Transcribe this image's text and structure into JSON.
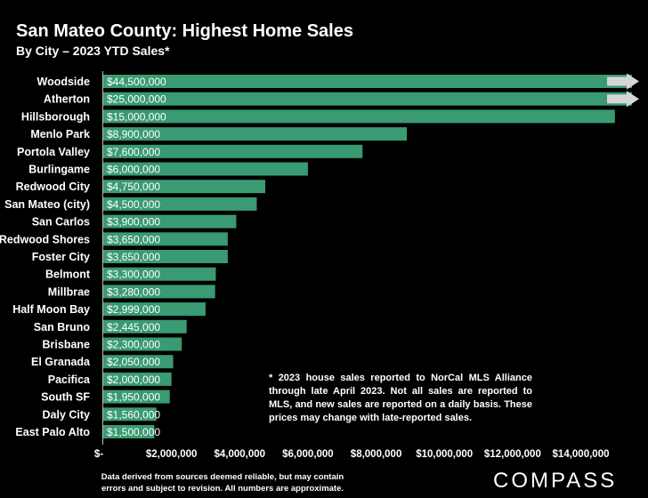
{
  "header": {
    "title": "San Mateo County: Highest Home Sales",
    "subtitle": "By City – 2023 YTD Sales*"
  },
  "footnote": "* 2023 house sales reported to NorCal MLS Alliance through late April 2023. Not all sales are reported to MLS, and new sales are reported on a daily basis. These prices may change with late-reported sales.",
  "source_line_1": "Data derived from sources deemed reliable, but may contain",
  "source_line_2": "errors and subject to revision. All numbers are approximate.",
  "logo": "COMPASS",
  "colors": {
    "bar": "#3a9a72",
    "arrow": "#d6d6d6",
    "background": "#000000",
    "text": "#ffffff"
  },
  "chart_data": {
    "type": "bar",
    "orientation": "horizontal",
    "categories": [
      "Woodside",
      "Atherton",
      "Hillsborough",
      "Menlo Park",
      "Portola Valley",
      "Burlingame",
      "Redwood City",
      "San Mateo (city)",
      "San Carlos",
      "Redwood Shores",
      "Foster City",
      "Belmont",
      "Millbrae",
      "Half Moon Bay",
      "San Bruno",
      "Brisbane",
      "El Granada",
      "Pacifica",
      "South SF",
      "Daly City",
      "East Palo Alto"
    ],
    "values": [
      44500000,
      25000000,
      15000000,
      8900000,
      7600000,
      6000000,
      4750000,
      4500000,
      3900000,
      3650000,
      3650000,
      3300000,
      3280000,
      2999000,
      2445000,
      2300000,
      2050000,
      2000000,
      1950000,
      1560000,
      1500000
    ],
    "value_labels": [
      "$44,500,000",
      "$25,000,000",
      "$15,000,000",
      "$8,900,000",
      "$7,600,000",
      "$6,000,000",
      "$4,750,000",
      "$4,500,000",
      "$3,900,000",
      "$3,650,000",
      "$3,650,000",
      "$3,300,000",
      "$3,280,000",
      "$2,999,000",
      "$2,445,000",
      "$2,300,000",
      "$2,050,000",
      "$2,000,000",
      "$1,950,000",
      "$1,560,000",
      "$1,500,000"
    ],
    "truncated": [
      true,
      true,
      false,
      false,
      false,
      false,
      false,
      false,
      false,
      false,
      false,
      false,
      false,
      false,
      false,
      false,
      false,
      false,
      false,
      false,
      false
    ],
    "xlim": [
      0,
      15500000
    ],
    "ticks": [
      0,
      2000000,
      4000000,
      6000000,
      8000000,
      10000000,
      12000000,
      14000000
    ],
    "tick_labels": [
      "$-",
      "$2,000,000",
      "$4,000,000",
      "$6,000,000",
      "$8,000,000",
      "$10,000,000",
      "$12,000,000",
      "$14,000,000"
    ],
    "grid": false,
    "legend": "none"
  }
}
